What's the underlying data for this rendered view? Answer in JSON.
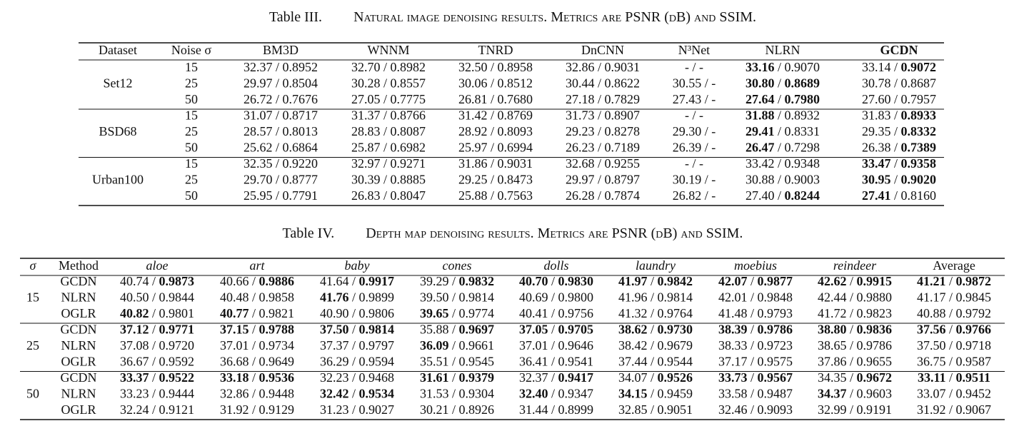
{
  "separator": " / ",
  "table3": {
    "label": "Table III.",
    "caption": "Natural image denoising results. Metrics are PSNR (dB) and SSIM.",
    "header": [
      "Dataset",
      "Noise σ",
      "BM3D",
      "WNNM",
      "TNRD",
      "DnCNN",
      "N³Net",
      "NLRN",
      "GCDN"
    ],
    "header_bold": [
      false,
      false,
      false,
      false,
      false,
      false,
      false,
      false,
      true
    ],
    "header_italic": [
      false,
      false,
      false,
      false,
      false,
      false,
      false,
      false,
      false
    ],
    "groups": [
      {
        "name": "Set12",
        "rows": [
          {
            "key": "15",
            "cells": [
              [
                "32.37",
                "0.8952"
              ],
              [
                "32.70",
                "0.8982"
              ],
              [
                "32.50",
                "0.8958"
              ],
              [
                "32.86",
                "0.9031"
              ],
              [
                "-",
                "-"
              ],
              [
                "33.16",
                "0.9070"
              ],
              [
                "33.14",
                "0.9072"
              ]
            ],
            "bold": [
              0,
              0,
              0,
              0,
              0,
              1,
              2
            ]
          },
          {
            "key": "25",
            "cells": [
              [
                "29.97",
                "0.8504"
              ],
              [
                "30.28",
                "0.8557"
              ],
              [
                "30.06",
                "0.8512"
              ],
              [
                "30.44",
                "0.8622"
              ],
              [
                "30.55",
                "-"
              ],
              [
                "30.80",
                "0.8689"
              ],
              [
                "30.78",
                "0.8687"
              ]
            ],
            "bold": [
              0,
              0,
              0,
              0,
              0,
              3,
              0
            ]
          },
          {
            "key": "50",
            "cells": [
              [
                "26.72",
                "0.7676"
              ],
              [
                "27.05",
                "0.7775"
              ],
              [
                "26.81",
                "0.7680"
              ],
              [
                "27.18",
                "0.7829"
              ],
              [
                "27.43",
                "-"
              ],
              [
                "27.64",
                "0.7980"
              ],
              [
                "27.60",
                "0.7957"
              ]
            ],
            "bold": [
              0,
              0,
              0,
              0,
              0,
              3,
              0
            ]
          }
        ]
      },
      {
        "name": "BSD68",
        "rows": [
          {
            "key": "15",
            "cells": [
              [
                "31.07",
                "0.8717"
              ],
              [
                "31.37",
                "0.8766"
              ],
              [
                "31.42",
                "0.8769"
              ],
              [
                "31.73",
                "0.8907"
              ],
              [
                "-",
                "-"
              ],
              [
                "31.88",
                "0.8932"
              ],
              [
                "31.83",
                "0.8933"
              ]
            ],
            "bold": [
              0,
              0,
              0,
              0,
              0,
              1,
              2
            ]
          },
          {
            "key": "25",
            "cells": [
              [
                "28.57",
                "0.8013"
              ],
              [
                "28.83",
                "0.8087"
              ],
              [
                "28.92",
                "0.8093"
              ],
              [
                "29.23",
                "0.8278"
              ],
              [
                "29.30",
                "-"
              ],
              [
                "29.41",
                "0.8331"
              ],
              [
                "29.35",
                "0.8332"
              ]
            ],
            "bold": [
              0,
              0,
              0,
              0,
              0,
              1,
              2
            ]
          },
          {
            "key": "50",
            "cells": [
              [
                "25.62",
                "0.6864"
              ],
              [
                "25.87",
                "0.6982"
              ],
              [
                "25.97",
                "0.6994"
              ],
              [
                "26.23",
                "0.7189"
              ],
              [
                "26.39",
                "-"
              ],
              [
                "26.47",
                "0.7298"
              ],
              [
                "26.38",
                "0.7389"
              ]
            ],
            "bold": [
              0,
              0,
              0,
              0,
              0,
              1,
              2
            ]
          }
        ]
      },
      {
        "name": "Urban100",
        "rows": [
          {
            "key": "15",
            "cells": [
              [
                "32.35",
                "0.9220"
              ],
              [
                "32.97",
                "0.9271"
              ],
              [
                "31.86",
                "0.9031"
              ],
              [
                "32.68",
                "0.9255"
              ],
              [
                "-",
                "-"
              ],
              [
                "33.42",
                "0.9348"
              ],
              [
                "33.47",
                "0.9358"
              ]
            ],
            "bold": [
              0,
              0,
              0,
              0,
              0,
              0,
              3
            ]
          },
          {
            "key": "25",
            "cells": [
              [
                "29.70",
                "0.8777"
              ],
              [
                "30.39",
                "0.8885"
              ],
              [
                "29.25",
                "0.8473"
              ],
              [
                "29.97",
                "0.8797"
              ],
              [
                "30.19",
                "-"
              ],
              [
                "30.88",
                "0.9003"
              ],
              [
                "30.95",
                "0.9020"
              ]
            ],
            "bold": [
              0,
              0,
              0,
              0,
              0,
              0,
              3
            ]
          },
          {
            "key": "50",
            "cells": [
              [
                "25.95",
                "0.7791"
              ],
              [
                "26.83",
                "0.8047"
              ],
              [
                "25.88",
                "0.7563"
              ],
              [
                "26.28",
                "0.7874"
              ],
              [
                "26.82",
                "-"
              ],
              [
                "27.40",
                "0.8244"
              ],
              [
                "27.41",
                "0.8160"
              ]
            ],
            "bold": [
              0,
              0,
              0,
              0,
              0,
              2,
              1
            ]
          }
        ]
      }
    ]
  },
  "table4": {
    "label": "Table IV.",
    "caption": "Depth map denoising results. Metrics are PSNR (dB) and SSIM.",
    "header": [
      "σ",
      "Method",
      "aloe",
      "art",
      "baby",
      "cones",
      "dolls",
      "laundry",
      "moebius",
      "reindeer",
      "Average"
    ],
    "header_bold": [
      false,
      false,
      false,
      false,
      false,
      false,
      false,
      false,
      false,
      false,
      false
    ],
    "header_italic": [
      true,
      false,
      true,
      true,
      true,
      true,
      true,
      true,
      true,
      true,
      false
    ],
    "groups": [
      {
        "name": "15",
        "rows": [
          {
            "key": "GCDN",
            "cells": [
              [
                "40.74",
                "0.9873"
              ],
              [
                "40.66",
                "0.9886"
              ],
              [
                "41.64",
                "0.9917"
              ],
              [
                "39.29",
                "0.9832"
              ],
              [
                "40.70",
                "0.9830"
              ],
              [
                "41.97",
                "0.9842"
              ],
              [
                "42.07",
                "0.9877"
              ],
              [
                "42.62",
                "0.9915"
              ],
              [
                "41.21",
                "0.9872"
              ]
            ],
            "bold": [
              2,
              2,
              2,
              2,
              3,
              3,
              3,
              3,
              3
            ]
          },
          {
            "key": "NLRN",
            "cells": [
              [
                "40.50",
                "0.9844"
              ],
              [
                "40.48",
                "0.9858"
              ],
              [
                "41.76",
                "0.9899"
              ],
              [
                "39.50",
                "0.9814"
              ],
              [
                "40.69",
                "0.9800"
              ],
              [
                "41.96",
                "0.9814"
              ],
              [
                "42.01",
                "0.9848"
              ],
              [
                "42.44",
                "0.9880"
              ],
              [
                "41.17",
                "0.9845"
              ]
            ],
            "bold": [
              0,
              0,
              1,
              0,
              0,
              0,
              0,
              0,
              0
            ]
          },
          {
            "key": "OGLR",
            "cells": [
              [
                "40.82",
                "0.9801"
              ],
              [
                "40.77",
                "0.9821"
              ],
              [
                "40.90",
                "0.9806"
              ],
              [
                "39.65",
                "0.9774"
              ],
              [
                "40.41",
                "0.9756"
              ],
              [
                "41.32",
                "0.9764"
              ],
              [
                "41.48",
                "0.9793"
              ],
              [
                "41.72",
                "0.9823"
              ],
              [
                "40.88",
                "0.9792"
              ]
            ],
            "bold": [
              1,
              1,
              0,
              1,
              0,
              0,
              0,
              0,
              0
            ]
          }
        ]
      },
      {
        "name": "25",
        "rows": [
          {
            "key": "GCDN",
            "cells": [
              [
                "37.12",
                "0.9771"
              ],
              [
                "37.15",
                "0.9788"
              ],
              [
                "37.50",
                "0.9814"
              ],
              [
                "35.88",
                "0.9697"
              ],
              [
                "37.05",
                "0.9705"
              ],
              [
                "38.62",
                "0.9730"
              ],
              [
                "38.39",
                "0.9786"
              ],
              [
                "38.80",
                "0.9836"
              ],
              [
                "37.56",
                "0.9766"
              ]
            ],
            "bold": [
              3,
              3,
              3,
              2,
              3,
              3,
              3,
              3,
              3
            ]
          },
          {
            "key": "NLRN",
            "cells": [
              [
                "37.08",
                "0.9720"
              ],
              [
                "37.01",
                "0.9734"
              ],
              [
                "37.37",
                "0.9797"
              ],
              [
                "36.09",
                "0.9661"
              ],
              [
                "37.01",
                "0.9646"
              ],
              [
                "38.42",
                "0.9679"
              ],
              [
                "38.33",
                "0.9723"
              ],
              [
                "38.65",
                "0.9786"
              ],
              [
                "37.50",
                "0.9718"
              ]
            ],
            "bold": [
              0,
              0,
              0,
              1,
              0,
              0,
              0,
              0,
              0
            ]
          },
          {
            "key": "OGLR",
            "cells": [
              [
                "36.67",
                "0.9592"
              ],
              [
                "36.68",
                "0.9649"
              ],
              [
                "36.29",
                "0.9594"
              ],
              [
                "35.51",
                "0.9545"
              ],
              [
                "36.41",
                "0.9541"
              ],
              [
                "37.44",
                "0.9544"
              ],
              [
                "37.17",
                "0.9575"
              ],
              [
                "37.86",
                "0.9655"
              ],
              [
                "36.75",
                "0.9587"
              ]
            ],
            "bold": [
              0,
              0,
              0,
              0,
              0,
              0,
              0,
              0,
              0
            ]
          }
        ]
      },
      {
        "name": "50",
        "rows": [
          {
            "key": "GCDN",
            "cells": [
              [
                "33.37",
                "0.9522"
              ],
              [
                "33.18",
                "0.9536"
              ],
              [
                "32.23",
                "0.9468"
              ],
              [
                "31.61",
                "0.9379"
              ],
              [
                "32.37",
                "0.9417"
              ],
              [
                "34.07",
                "0.9526"
              ],
              [
                "33.73",
                "0.9567"
              ],
              [
                "34.35",
                "0.9672"
              ],
              [
                "33.11",
                "0.9511"
              ]
            ],
            "bold": [
              3,
              3,
              0,
              3,
              2,
              2,
              3,
              2,
              3
            ]
          },
          {
            "key": "NLRN",
            "cells": [
              [
                "33.23",
                "0.9444"
              ],
              [
                "32.86",
                "0.9448"
              ],
              [
                "32.42",
                "0.9534"
              ],
              [
                "31.53",
                "0.9304"
              ],
              [
                "32.40",
                "0.9347"
              ],
              [
                "34.15",
                "0.9459"
              ],
              [
                "33.58",
                "0.9487"
              ],
              [
                "34.37",
                "0.9603"
              ],
              [
                "33.07",
                "0.9452"
              ]
            ],
            "bold": [
              0,
              0,
              3,
              0,
              1,
              1,
              0,
              1,
              0
            ]
          },
          {
            "key": "OGLR",
            "cells": [
              [
                "32.24",
                "0.9121"
              ],
              [
                "31.92",
                "0.9129"
              ],
              [
                "31.23",
                "0.9027"
              ],
              [
                "30.21",
                "0.8926"
              ],
              [
                "31.44",
                "0.8999"
              ],
              [
                "32.85",
                "0.9051"
              ],
              [
                "32.46",
                "0.9093"
              ],
              [
                "32.99",
                "0.9191"
              ],
              [
                "31.92",
                "0.9067"
              ]
            ],
            "bold": [
              0,
              0,
              0,
              0,
              0,
              0,
              0,
              0,
              0
            ]
          }
        ]
      }
    ]
  }
}
